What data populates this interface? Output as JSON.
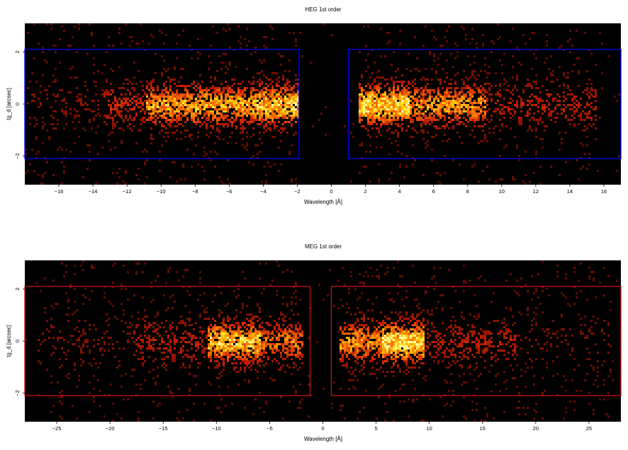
{
  "chart_data": [
    {
      "type": "heatmap",
      "title": "HEG 1st order",
      "xlabel": "Wavelength [Å]",
      "ylabel": "tg_d [arcsec]",
      "xlim": [
        -18,
        17
      ],
      "ylim": [
        -3.1,
        3.1
      ],
      "xticks": [
        -16,
        -14,
        -12,
        -10,
        -8,
        -6,
        -4,
        -2,
        0,
        2,
        4,
        6,
        8,
        10,
        12,
        14,
        16
      ],
      "yticks": [
        -2,
        0,
        2
      ],
      "region_color": "#0000ee",
      "regions": [
        {
          "x": [
            -18,
            -1.9
          ],
          "y": [
            -2.1,
            2.1
          ]
        },
        {
          "x": [
            1.0,
            17
          ],
          "y": [
            -2.1,
            2.1
          ]
        }
      ],
      "emission_profile": [
        {
          "x": [
            -18,
            -13.5
          ],
          "level": 0.12
        },
        {
          "x": [
            -13.5,
            -11
          ],
          "level": 0.35
        },
        {
          "x": [
            -11,
            -4.5
          ],
          "level": 0.75
        },
        {
          "x": [
            -4.5,
            -2.0
          ],
          "level": 0.85
        },
        {
          "x": [
            1.5,
            4.5
          ],
          "level": 0.9
        },
        {
          "x": [
            4.5,
            9.0
          ],
          "level": 0.7
        },
        {
          "x": [
            9.0,
            15.5
          ],
          "level": 0.3
        }
      ]
    },
    {
      "type": "heatmap",
      "title": "MEG 1st order",
      "xlabel": "Wavelength [Å]",
      "ylabel": "tg_d [arcsec]",
      "xlim": [
        -28,
        28
      ],
      "ylim": [
        -3.1,
        3.1
      ],
      "xticks": [
        -25,
        -20,
        -15,
        -10,
        -5,
        0,
        5,
        10,
        15,
        20,
        25
      ],
      "yticks": [
        -2,
        0,
        2
      ],
      "region_color": "#cc1111",
      "regions": [
        {
          "x": [
            -28,
            -1.2
          ],
          "y": [
            -2.1,
            2.1
          ]
        },
        {
          "x": [
            0.8,
            28
          ],
          "y": [
            -2.1,
            2.1
          ]
        }
      ],
      "emission_profile": [
        {
          "x": [
            -27,
            -18
          ],
          "level": 0.12
        },
        {
          "x": [
            -18,
            -11
          ],
          "level": 0.3
        },
        {
          "x": [
            -11,
            -6
          ],
          "level": 0.85
        },
        {
          "x": [
            -6,
            -2
          ],
          "level": 0.6
        },
        {
          "x": [
            1.5,
            5.5
          ],
          "level": 0.7
        },
        {
          "x": [
            5.5,
            9.5
          ],
          "level": 0.95
        },
        {
          "x": [
            9.5,
            18
          ],
          "level": 0.3
        },
        {
          "x": [
            18,
            27
          ],
          "level": 0.1
        }
      ]
    }
  ]
}
